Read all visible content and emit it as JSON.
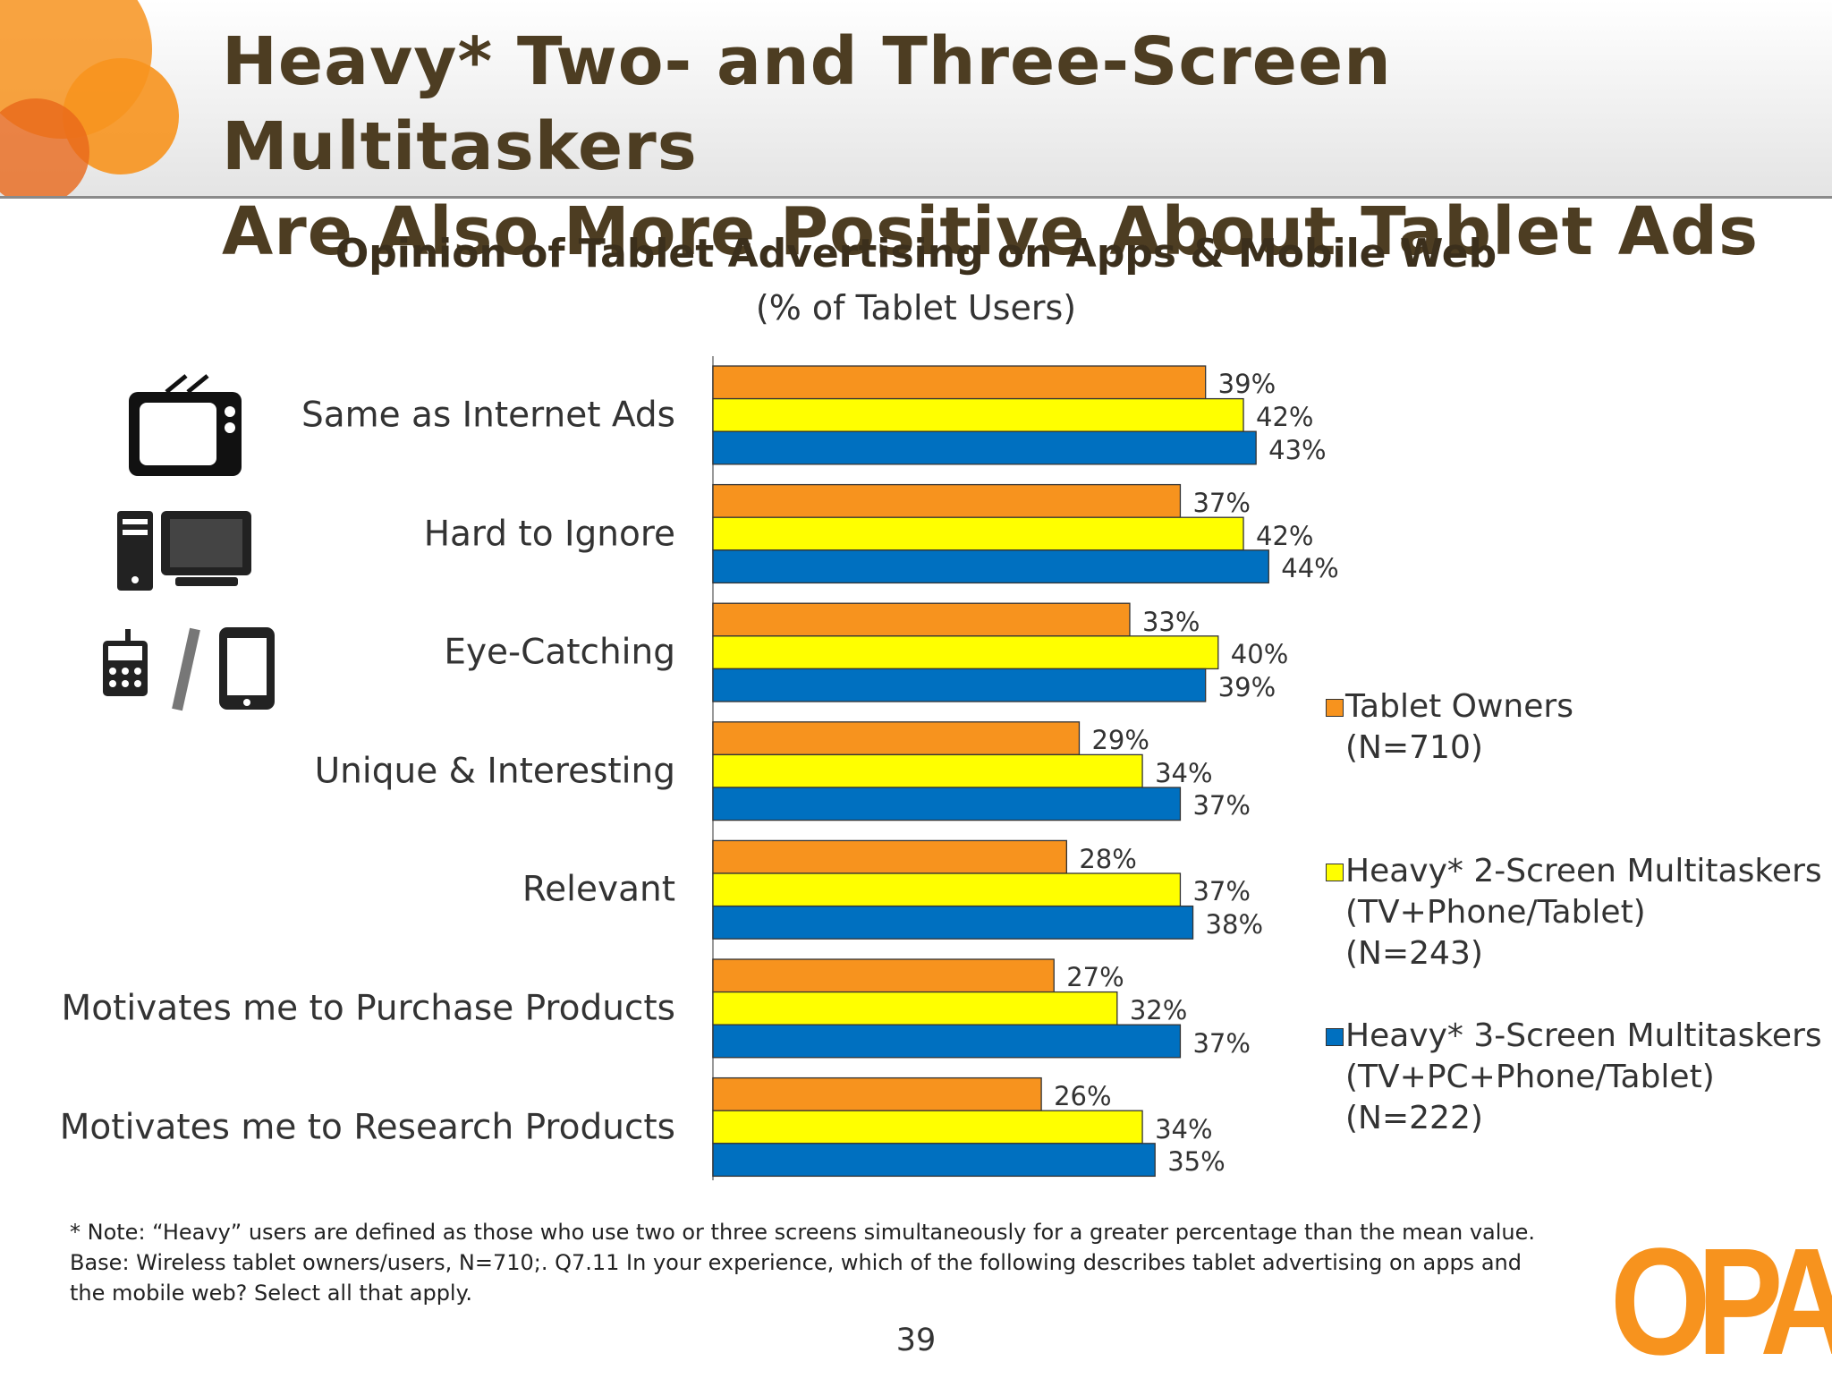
{
  "title": "Heavy* Two- and Three-Screen Multitaskers\nAre Also More Positive About Tablet Ads",
  "chart_data": {
    "type": "bar",
    "orientation": "horizontal",
    "title": "Opinion of Tablet Advertising on Apps & Mobile Web",
    "subtitle": "(% of Tablet Users)",
    "categories": [
      "Same as Internet Ads",
      "Hard to Ignore",
      "Eye-Catching",
      "Unique & Interesting",
      "Relevant",
      "Motivates me to Purchase Products",
      "Motivates me to Research Products"
    ],
    "series": [
      {
        "name": "Tablet Owners\n(N=710)",
        "color": "#f7931e",
        "values": [
          39,
          37,
          33,
          29,
          28,
          27,
          26
        ],
        "value_labels": [
          "39%",
          "37%",
          "33%",
          "29%",
          "28%",
          "27%",
          "26%"
        ]
      },
      {
        "name": "Heavy* 2-Screen Multitaskers\n(TV+Phone/Tablet)\n(N=243)",
        "color": "#ffff00",
        "values": [
          42,
          42,
          40,
          34,
          37,
          32,
          34
        ],
        "value_labels": [
          "42%",
          "42%",
          "40%",
          "34%",
          "37%",
          "32%",
          "34%"
        ]
      },
      {
        "name": "Heavy* 3-Screen Multitaskers\n(TV+PC+Phone/Tablet)\n(N=222)",
        "color": "#0070c0",
        "values": [
          43,
          44,
          39,
          37,
          38,
          37,
          35
        ],
        "value_labels": [
          "43%",
          "44%",
          "39%",
          "37%",
          "38%",
          "37%",
          "35%"
        ]
      }
    ]
  },
  "footnote": {
    "note": "* Note: “Heavy” users are defined as those who use two or three screens simultaneously for a greater percentage than the mean value.",
    "base": "Base: Wireless tablet owners/users, N=710;. Q7.11 In your experience, which of the following describes tablet advertising on apps and the mobile web? Select all that apply."
  },
  "page_number": "39",
  "logo": "OPA"
}
